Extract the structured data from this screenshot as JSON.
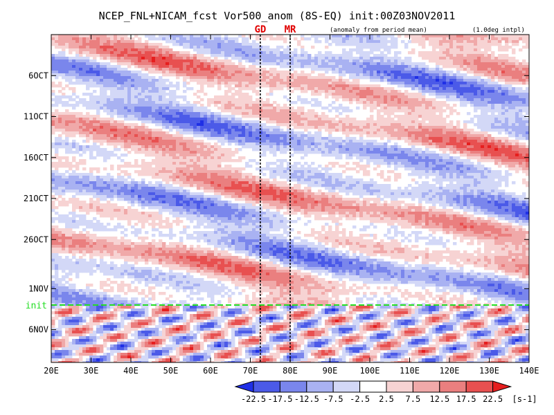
{
  "chart_data": {
    "type": "heatmap",
    "title": "NCEP_FNL+NICAM_fcst Vor500_anom (8S-EQ) init:00Z03NOV2011",
    "annotation_left": "(anomaly from period mean)",
    "annotation_right": "(1.0deg intpl)",
    "x_axis": {
      "range_deg_e": [
        20,
        140
      ],
      "tick_labels": [
        "20E",
        "30E",
        "40E",
        "50E",
        "60E",
        "70E",
        "80E",
        "90E",
        "100E",
        "110E",
        "120E",
        "130E",
        "140E"
      ]
    },
    "y_axis": {
      "orientation": "time increasing downward",
      "range_days": [
        "2011-10-01",
        "2011-11-10"
      ],
      "ticks": [
        {
          "date": "2011-10-06",
          "label": "6OCT"
        },
        {
          "date": "2011-10-11",
          "label": "11OCT"
        },
        {
          "date": "2011-10-16",
          "label": "16OCT"
        },
        {
          "date": "2011-10-21",
          "label": "21OCT"
        },
        {
          "date": "2011-10-26",
          "label": "26OCT"
        },
        {
          "date": "2011-11-01",
          "label": "1NOV"
        },
        {
          "date": "2011-11-06",
          "label": "6NOV"
        }
      ]
    },
    "markers": {
      "longitudes": [
        {
          "lon": 72.5,
          "label": "GD"
        },
        {
          "lon": 80,
          "label": "MR"
        }
      ],
      "init_line": {
        "date": "2011-11-03",
        "label": "init"
      }
    },
    "colorbar": {
      "unit": "[s-1]",
      "tick_labels": [
        "-22.5",
        "-17.5",
        "-12.5",
        "-7.5",
        "-2.5",
        "2.5",
        "7.5",
        "12.5",
        "17.5",
        "22.5"
      ],
      "colors": [
        "#1f2fe6",
        "#4b5ae8",
        "#7a86ec",
        "#a9b2f2",
        "#d3d8f7",
        "#ffffff",
        "#f7d3d3",
        "#f0a9a9",
        "#ea7f7f",
        "#e85050",
        "#e61e1e"
      ]
    }
  }
}
